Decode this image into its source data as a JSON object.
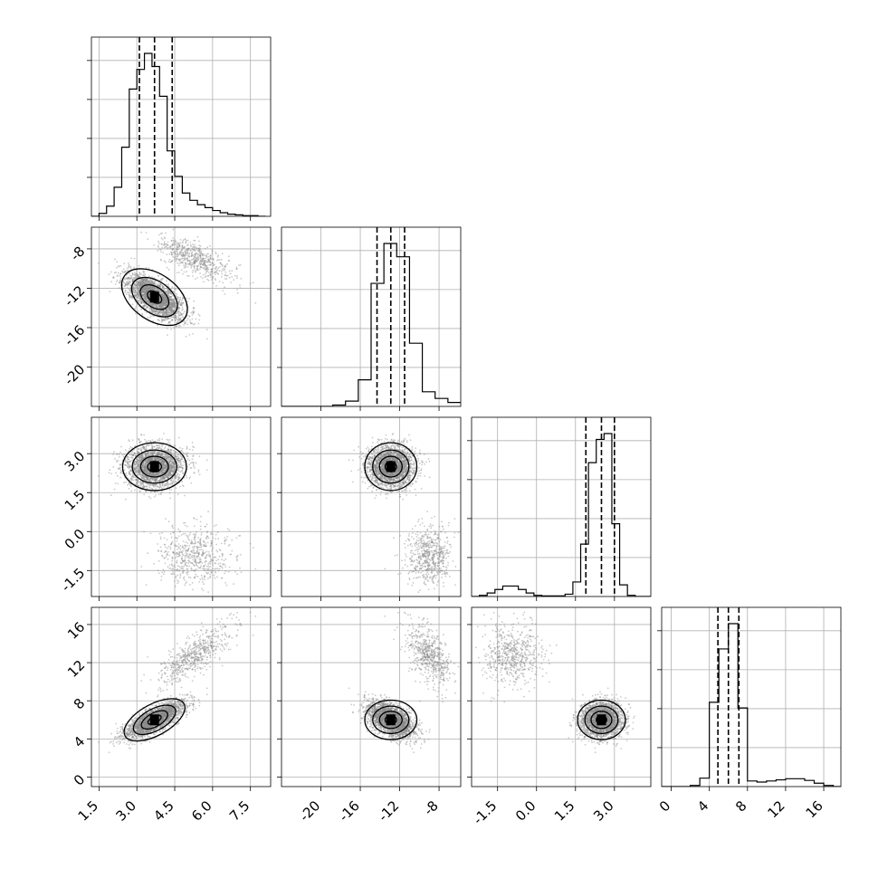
{
  "chart_data": {
    "type": "corner",
    "colors": {
      "points": "#8a8a8a",
      "line": "#000000",
      "grid": "#b0b0b0"
    },
    "grid": true,
    "parameters": [
      {
        "range": [
          1.2,
          8.3
        ],
        "ticks": [
          "1.5",
          "3.0",
          "4.5",
          "6.0",
          "7.5"
        ],
        "tick_values": [
          1.5,
          3.0,
          4.5,
          6.0,
          7.5
        ],
        "quantiles": [
          3.1,
          3.7,
          4.4
        ],
        "hist": {
          "bins": [
            1.2,
            1.5,
            1.8,
            2.1,
            2.4,
            2.7,
            3.0,
            3.3,
            3.6,
            3.9,
            4.2,
            4.5,
            4.8,
            5.1,
            5.4,
            5.7,
            6.0,
            6.3,
            6.6,
            6.9,
            7.2,
            7.5,
            7.8,
            8.1
          ],
          "counts": [
            0,
            4,
            14,
            40,
            95,
            175,
            202,
            224,
            206,
            165,
            90,
            55,
            32,
            22,
            16,
            12,
            8,
            5,
            3,
            2,
            1,
            1,
            0
          ]
        }
      },
      {
        "range": [
          -24,
          -5.8
        ],
        "ticks": [
          "-20",
          "-16",
          "-12",
          "-8"
        ],
        "tick_values": [
          -20,
          -16,
          -12,
          -8
        ],
        "row_ticks": [
          "-8",
          "-12",
          "-16",
          "-20"
        ],
        "quantiles": [
          -14.3,
          -12.9,
          -11.5
        ],
        "hist": {
          "bins": [
            -24.0,
            -22.7,
            -21.4,
            -20.1,
            -18.8,
            -17.5,
            -16.2,
            -14.9,
            -13.6,
            -12.3,
            -11.0,
            -9.7,
            -8.4,
            -7.1,
            -5.8
          ],
          "counts": [
            0,
            0,
            0,
            0,
            2,
            8,
            40,
            185,
            245,
            225,
            95,
            22,
            12,
            6
          ]
        }
      },
      {
        "range": [
          -2.5,
          4.4
        ],
        "ticks": [
          "-1.5",
          "0.0",
          "1.5",
          "3.0"
        ],
        "tick_values": [
          -1.5,
          0.0,
          1.5,
          3.0
        ],
        "row_ticks": [
          "3.0",
          "1.5",
          "0.0",
          "-1.5"
        ],
        "quantiles": [
          1.9,
          2.5,
          3.0
        ],
        "hist": {
          "bins": [
            -2.5,
            -2.2,
            -1.9,
            -1.6,
            -1.3,
            -1.0,
            -0.7,
            -0.4,
            -0.1,
            0.2,
            0.5,
            0.8,
            1.1,
            1.4,
            1.7,
            2.0,
            2.3,
            2.6,
            2.9,
            3.2,
            3.5,
            3.8,
            4.1,
            4.4
          ],
          "counts": [
            0,
            2,
            6,
            12,
            18,
            18,
            12,
            6,
            2,
            1,
            1,
            1,
            4,
            25,
            90,
            230,
            270,
            280,
            125,
            20,
            2,
            0,
            0
          ]
        }
      },
      {
        "range": [
          -1,
          17.8
        ],
        "ticks": [
          "0",
          "4",
          "8",
          "12",
          "16"
        ],
        "tick_values": [
          0,
          4,
          8,
          12,
          16
        ],
        "row_ticks": [
          "16",
          "12",
          "8",
          "4",
          "0"
        ],
        "quantiles": [
          4.9,
          6.0,
          7.1
        ],
        "hist": {
          "bins": [
            -1.0,
            0.0,
            1.0,
            2.0,
            3.0,
            4.0,
            5.0,
            6.0,
            7.0,
            8.0,
            9.0,
            10.0,
            11.0,
            12.0,
            13.0,
            14.0,
            15.0,
            16.0,
            17.0,
            17.8
          ],
          "counts": [
            0,
            0,
            0,
            2,
            15,
            150,
            245,
            290,
            140,
            10,
            8,
            10,
            12,
            14,
            14,
            11,
            6,
            2,
            0
          ]
        }
      }
    ],
    "scatter": {
      "main": {
        "centers": [
          3.7,
          -12.9,
          2.5,
          6.0
        ],
        "sd": [
          0.55,
          1.15,
          0.4,
          0.9
        ]
      },
      "secondary": {
        "centers": [
          5.3,
          -9.0,
          -0.9,
          12.8
        ],
        "sd": [
          0.7,
          1.1,
          0.55,
          1.5
        ]
      },
      "correlation_x1_x4": 0.75,
      "correlation_x1_x2": -0.65,
      "secondary_fraction": 0.19
    }
  }
}
